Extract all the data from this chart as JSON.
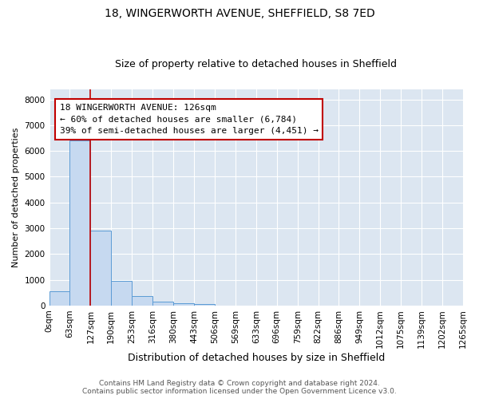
{
  "title": "18, WINGERWORTH AVENUE, SHEFFIELD, S8 7ED",
  "subtitle": "Size of property relative to detached houses in Sheffield",
  "xlabel": "Distribution of detached houses by size in Sheffield",
  "ylabel": "Number of detached properties",
  "footer_line1": "Contains HM Land Registry data © Crown copyright and database right 2024.",
  "footer_line2": "Contains public sector information licensed under the Open Government Licence v3.0.",
  "bin_labels": [
    "0sqm",
    "63sqm",
    "127sqm",
    "190sqm",
    "253sqm",
    "316sqm",
    "380sqm",
    "443sqm",
    "506sqm",
    "569sqm",
    "633sqm",
    "696sqm",
    "759sqm",
    "822sqm",
    "886sqm",
    "949sqm",
    "1012sqm",
    "1075sqm",
    "1139sqm",
    "1202sqm",
    "1265sqm"
  ],
  "bar_values": [
    550,
    6400,
    2920,
    970,
    370,
    150,
    90,
    60,
    0,
    0,
    0,
    0,
    0,
    0,
    0,
    0,
    0,
    0,
    0,
    0
  ],
  "bar_color": "#c6d9f0",
  "bar_edge_color": "#5b9bd5",
  "red_line_x": 2,
  "red_line_color": "#c00000",
  "annotation_text": "18 WINGERWORTH AVENUE: 126sqm\n← 60% of detached houses are smaller (6,784)\n39% of semi-detached houses are larger (4,451) →",
  "ylim": [
    0,
    8400
  ],
  "yticks": [
    0,
    1000,
    2000,
    3000,
    4000,
    5000,
    6000,
    7000,
    8000
  ],
  "fig_bg_color": "#ffffff",
  "plot_bg_color": "#dce6f1",
  "grid_color": "#ffffff",
  "title_fontsize": 10,
  "subtitle_fontsize": 9,
  "ylabel_fontsize": 8,
  "xlabel_fontsize": 9,
  "tick_fontsize": 7.5,
  "footer_fontsize": 6.5,
  "annot_fontsize": 8
}
